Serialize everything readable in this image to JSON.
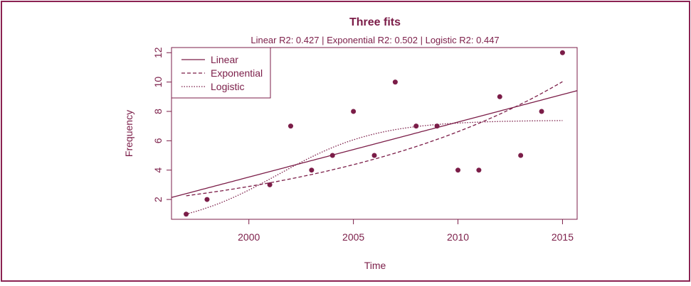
{
  "colors": {
    "accent": "#7b1d48",
    "border": "#8b2252",
    "text": "#8b2252"
  },
  "chart_data": {
    "type": "scatter",
    "title": "Three fits",
    "subtitle": "Linear R2: 0.427 | Exponential R2: 0.502 | Logistic R2: 0.447",
    "xlabel": "Time",
    "ylabel": "Frequency",
    "xlim": [
      1996.3,
      2015.7
    ],
    "ylim": [
      0.65,
      12.35
    ],
    "x_ticks": [
      2000,
      2005,
      2010,
      2015
    ],
    "y_ticks": [
      2,
      4,
      6,
      8,
      10,
      12
    ],
    "grid": false,
    "legend": {
      "position": "top-left",
      "entries": [
        "Linear",
        "Exponential",
        "Logistic"
      ]
    },
    "points": {
      "x": [
        1997,
        1998,
        2001,
        2002,
        2003,
        2004,
        2005,
        2006,
        2007,
        2008,
        2009,
        2010,
        2011,
        2012,
        2013,
        2014,
        2015
      ],
      "y": [
        1,
        2,
        3,
        7,
        4,
        5,
        8,
        5,
        10,
        7,
        7,
        4,
        4,
        9,
        5,
        8,
        12
      ]
    },
    "fits": {
      "linear": {
        "intercept_at_1997": 2.4,
        "slope": 0.375,
        "range": [
          1996.3,
          2015.7
        ]
      },
      "exponential": {
        "a_at_1997": 2.25,
        "rate": 0.083,
        "range": [
          1997,
          2015
        ]
      },
      "logistic": {
        "K": 7.4,
        "rate": 0.42,
        "midpoint": 2001.4,
        "range": [
          1997,
          2015
        ]
      }
    }
  }
}
